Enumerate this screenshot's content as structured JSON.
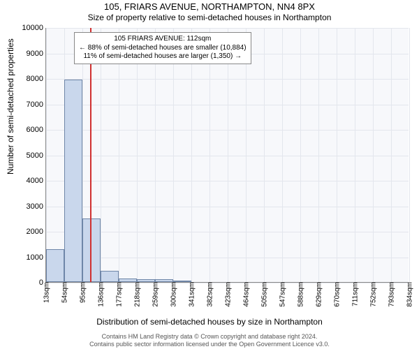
{
  "chart": {
    "type": "histogram",
    "title": "105, FRIARS AVENUE, NORTHAMPTON, NN4 8PX",
    "subtitle": "Size of property relative to semi-detached houses in Northampton",
    "y_label": "Number of semi-detached properties",
    "x_label": "Distribution of semi-detached houses by size in Northampton",
    "background_color": "#f7f8fb",
    "grid_color": "#e3e6ed",
    "axis_color": "#888888",
    "bar_fill": "#c9d7ec",
    "bar_stroke": "#6f86a8",
    "marker_color": "#d03030",
    "title_fontsize": 13,
    "subtitle_fontsize": 12,
    "label_fontsize": 12,
    "tick_fontsize": 10,
    "y_ticks": [
      0,
      1000,
      2000,
      3000,
      4000,
      5000,
      6000,
      7000,
      8000,
      9000,
      10000
    ],
    "y_max": 10000,
    "x_ticks": [
      "13sqm",
      "54sqm",
      "95sqm",
      "136sqm",
      "177sqm",
      "218sqm",
      "259sqm",
      "300sqm",
      "341sqm",
      "382sqm",
      "423sqm",
      "464sqm",
      "505sqm",
      "547sqm",
      "588sqm",
      "629sqm",
      "670sqm",
      "711sqm",
      "752sqm",
      "793sqm",
      "834sqm"
    ],
    "x_min": 13,
    "x_max": 834,
    "bars": [
      {
        "x": 33.5,
        "w": 41,
        "count": 1300
      },
      {
        "x": 74.5,
        "w": 41,
        "count": 7950
      },
      {
        "x": 115.5,
        "w": 41,
        "count": 2500
      },
      {
        "x": 156.5,
        "w": 41,
        "count": 450
      },
      {
        "x": 197.5,
        "w": 41,
        "count": 150
      },
      {
        "x": 238.5,
        "w": 41,
        "count": 100
      },
      {
        "x": 279.5,
        "w": 41,
        "count": 100
      },
      {
        "x": 320.5,
        "w": 41,
        "count": 50
      }
    ],
    "marker_x": 112,
    "info_box": {
      "line1": "105 FRIARS AVENUE: 112sqm",
      "line2": "← 88% of semi-detached houses are smaller (10,884)",
      "line3": "11% of semi-detached houses are larger (1,350) →"
    },
    "attribution": {
      "line1": "Contains HM Land Registry data © Crown copyright and database right 2024.",
      "line2": "Contains public sector information licensed under the Open Government Licence v3.0."
    }
  }
}
